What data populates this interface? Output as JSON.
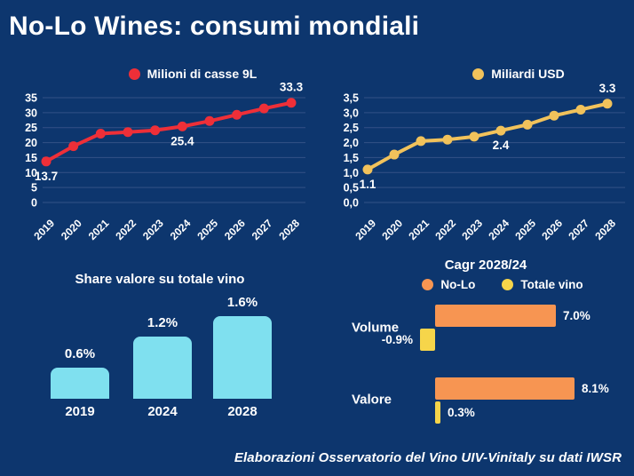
{
  "page": {
    "title": "No-Lo Wines: consumi mondiali",
    "footer": "Elaborazioni Osservatorio del Vino UIV-Vinitaly su dati IWSR"
  },
  "colors": {
    "background": "#0D366E",
    "red": "#EE2F38",
    "gold": "#F1C25B",
    "cyan": "#7FE0EF",
    "orange": "#F79552",
    "yellow": "#F6D54A",
    "grid": "#52699B",
    "text": "#FFFFFF"
  },
  "chart_data": [
    {
      "id": "cases_line",
      "type": "line",
      "legend": "Milioni di casse 9L",
      "color_key": "red",
      "x": [
        "2019",
        "2020",
        "2021",
        "2022",
        "2023",
        "2024",
        "2025",
        "2026",
        "2027",
        "2028"
      ],
      "values": [
        13.7,
        18.8,
        23.0,
        23.5,
        24.1,
        25.4,
        27.2,
        29.3,
        31.4,
        33.3
      ],
      "ylim": [
        0,
        35
      ],
      "yticks": [
        0,
        5,
        10,
        15,
        20,
        25,
        30,
        35
      ],
      "ytick_labels": [
        "0",
        "5",
        "10",
        "15",
        "20",
        "25",
        "30",
        "35"
      ],
      "grid": true,
      "legend_position": "top",
      "annotations": [
        {
          "index": 0,
          "text": "13.7",
          "placement": "below"
        },
        {
          "index": 5,
          "text": "25.4",
          "placement": "below"
        },
        {
          "index": 9,
          "text": "33.3",
          "placement": "above"
        }
      ]
    },
    {
      "id": "usd_line",
      "type": "line",
      "legend": "Miliardi USD",
      "color_key": "gold",
      "x": [
        "2019",
        "2020",
        "2021",
        "2022",
        "2023",
        "2024",
        "2025",
        "2026",
        "2027",
        "2028"
      ],
      "values": [
        1.1,
        1.6,
        2.05,
        2.1,
        2.2,
        2.4,
        2.6,
        2.9,
        3.1,
        3.3
      ],
      "ylim": [
        0,
        3.5
      ],
      "yticks": [
        0,
        0.5,
        1.0,
        1.5,
        2.0,
        2.5,
        3.0,
        3.5
      ],
      "ytick_labels": [
        "0,0",
        "0,5",
        "1,0",
        "1,5",
        "2,0",
        "2,5",
        "3,0",
        "3,5"
      ],
      "grid": true,
      "legend_position": "top",
      "annotations": [
        {
          "index": 0,
          "text": "1.1",
          "placement": "below"
        },
        {
          "index": 5,
          "text": "2.4",
          "placement": "below"
        },
        {
          "index": 9,
          "text": "3.3",
          "placement": "above"
        }
      ]
    },
    {
      "id": "share_bar",
      "type": "bar",
      "title": "Share valore su totale vino",
      "color_key": "cyan",
      "categories": [
        "2019",
        "2024",
        "2028"
      ],
      "values": [
        0.6,
        1.2,
        1.6
      ],
      "value_labels": [
        "0.6%",
        "1.2%",
        "1.6%"
      ],
      "grid": false
    },
    {
      "id": "cagr_bar",
      "type": "bar_horizontal_grouped",
      "title": "Cagr 2028/24",
      "categories": [
        "Volume",
        "Valore"
      ],
      "series": [
        {
          "name": "No-Lo",
          "color_key": "orange",
          "values": [
            7.0,
            8.1
          ],
          "labels": [
            "7.0%",
            "8.1%"
          ]
        },
        {
          "name": "Totale vino",
          "color_key": "yellow",
          "values": [
            -0.9,
            0.3
          ],
          "labels": [
            "-0.9%",
            "0.3%"
          ]
        }
      ],
      "grid": false,
      "legend_position": "top"
    }
  ]
}
